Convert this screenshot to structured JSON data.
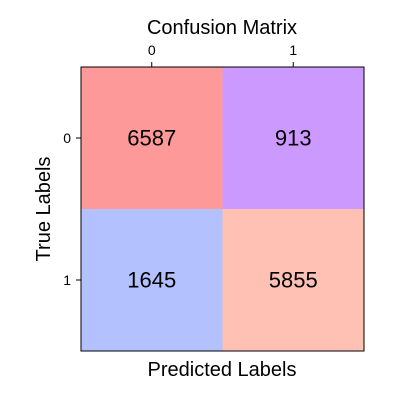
{
  "chart_data": {
    "type": "heatmap",
    "title": "Confusion Matrix",
    "xlabel": "Predicted Labels",
    "ylabel": "True Labels",
    "x_categories": [
      "0",
      "1"
    ],
    "y_categories": [
      "0",
      "1"
    ],
    "values": [
      [
        6587,
        913
      ],
      [
        1645,
        5855
      ]
    ],
    "cell_colors": [
      [
        "#fe9999",
        "#cc99ff"
      ],
      [
        "#b3c1fe",
        "#fec1b3"
      ]
    ],
    "x_tick_position": "top",
    "grid": false
  }
}
